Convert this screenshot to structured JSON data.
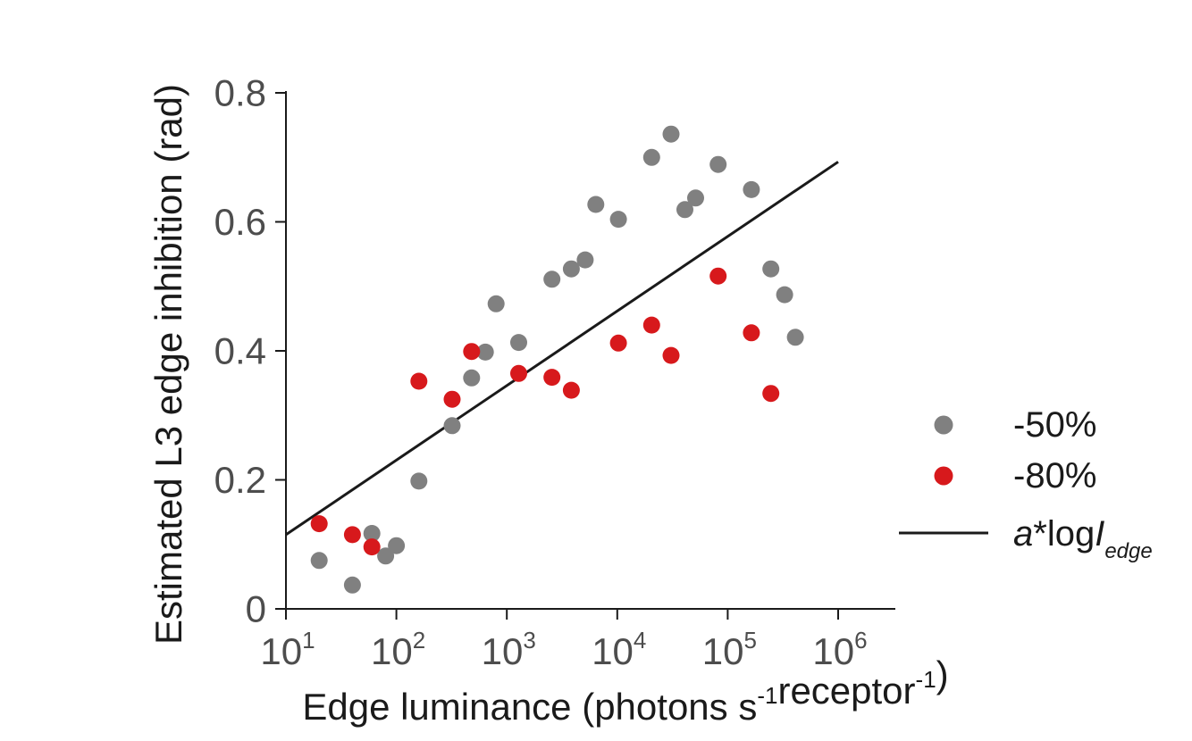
{
  "chart_data": {
    "type": "scatter",
    "xlabel": "Edge luminance (photons s⁻¹receptor⁻¹)",
    "ylabel": "Estimated L3 edge inhibition (rad)",
    "x_scale": "log",
    "xlim": [
      10,
      3000000
    ],
    "ylim": [
      0,
      0.8
    ],
    "x_ticks": [
      {
        "value": 10,
        "base": "10",
        "exp": "1"
      },
      {
        "value": 100,
        "base": "10",
        "exp": "2"
      },
      {
        "value": 1000,
        "base": "10",
        "exp": "3"
      },
      {
        "value": 10000,
        "base": "10",
        "exp": "4"
      },
      {
        "value": 100000,
        "base": "10",
        "exp": "5"
      },
      {
        "value": 1000000,
        "base": "10",
        "exp": "6"
      }
    ],
    "y_ticks": [
      {
        "value": 0,
        "label": "0"
      },
      {
        "value": 0.2,
        "label": "0.2"
      },
      {
        "value": 0.4,
        "label": "0.4"
      },
      {
        "value": 0.6,
        "label": "0.6"
      },
      {
        "value": 0.8,
        "label": "0.8"
      }
    ],
    "grid": false,
    "legend_position": "right",
    "series": [
      {
        "name": "-50%",
        "color": "#808080",
        "points": [
          [
            20,
            0.075
          ],
          [
            40,
            0.037
          ],
          [
            60,
            0.117
          ],
          [
            80,
            0.082
          ],
          [
            100,
            0.098
          ],
          [
            160,
            0.198
          ],
          [
            320,
            0.284
          ],
          [
            480,
            0.358
          ],
          [
            640,
            0.398
          ],
          [
            800,
            0.473
          ],
          [
            1280,
            0.413
          ],
          [
            2560,
            0.511
          ],
          [
            3840,
            0.527
          ],
          [
            5120,
            0.541
          ],
          [
            6400,
            0.627
          ],
          [
            10240,
            0.604
          ],
          [
            20480,
            0.7
          ],
          [
            30720,
            0.736
          ],
          [
            40960,
            0.619
          ],
          [
            51200,
            0.637
          ],
          [
            81920,
            0.689
          ],
          [
            163840,
            0.65
          ],
          [
            245760,
            0.527
          ],
          [
            327680,
            0.487
          ],
          [
            409600,
            0.421
          ]
        ]
      },
      {
        "name": "-80%",
        "color": "#d7191c",
        "points": [
          [
            20,
            0.132
          ],
          [
            40,
            0.115
          ],
          [
            60,
            0.096
          ],
          [
            160,
            0.353
          ],
          [
            320,
            0.325
          ],
          [
            480,
            0.399
          ],
          [
            1280,
            0.365
          ],
          [
            2560,
            0.359
          ],
          [
            3840,
            0.339
          ],
          [
            10240,
            0.412
          ],
          [
            20480,
            0.44
          ],
          [
            30720,
            0.393
          ],
          [
            81920,
            0.516
          ],
          [
            163840,
            0.428
          ],
          [
            245760,
            0.334
          ]
        ]
      }
    ],
    "fit_line": {
      "name_prefix": "a",
      "name_mid": "*log",
      "name_var": "I",
      "name_sub": "edge",
      "color": "#1a1a1a",
      "x_range": [
        10,
        1000000
      ],
      "y_range": [
        0.115,
        0.693
      ]
    }
  }
}
